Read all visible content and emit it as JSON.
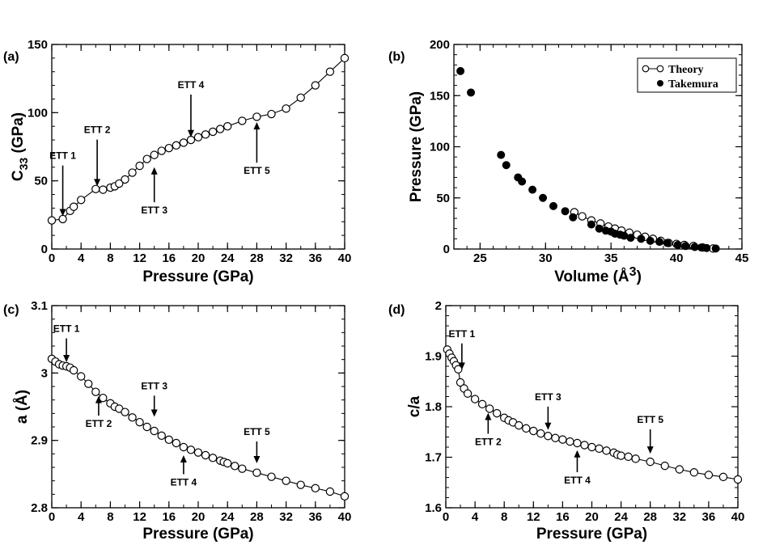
{
  "chart_data": [
    {
      "type": "line",
      "panel": "(a)",
      "xlabel": "Pressure (GPa)",
      "ylabel": "C",
      "ylabel_sub": "33",
      "ylabel_suffix": " (GPa)",
      "xlim": [
        0,
        40
      ],
      "ylim": [
        0,
        150
      ],
      "xticks": [
        "0",
        "4",
        "8",
        "12",
        "16",
        "20",
        "24",
        "28",
        "32",
        "36",
        "40"
      ],
      "xtick_values": [
        0,
        4,
        8,
        12,
        16,
        20,
        24,
        28,
        32,
        36,
        40
      ],
      "yticks": [
        "0",
        "50",
        "100",
        "150"
      ],
      "ytick_values": [
        0,
        50,
        100,
        150
      ],
      "series": [
        {
          "name": "C33",
          "style": "line-open-circles",
          "x": [
            0,
            1.5,
            2.5,
            3,
            4,
            6,
            7,
            8,
            8.6,
            9.2,
            10,
            11,
            12,
            13,
            14,
            15,
            16,
            17,
            18,
            19,
            20,
            21,
            22,
            23,
            24,
            26,
            28,
            30,
            32,
            34,
            36,
            38,
            40
          ],
          "y": [
            21,
            22,
            28,
            31,
            36,
            44,
            43.5,
            45,
            46,
            48,
            51,
            56,
            61,
            66,
            69,
            72,
            74,
            76,
            78,
            80,
            82,
            84,
            86,
            88,
            90,
            94,
            97,
            99,
            103,
            111,
            120,
            130,
            140
          ]
        }
      ],
      "annotations": [
        {
          "text": "ETT 1",
          "x": 1.5,
          "y_tip": 24,
          "y_text": 66,
          "direction": "down"
        },
        {
          "text": "ETT 2",
          "x": 6.2,
          "y_tip": 46,
          "y_text": 85,
          "direction": "down"
        },
        {
          "text": "ETT 3",
          "x": 14,
          "y_tip": 60,
          "y_text": 26,
          "direction": "up"
        },
        {
          "text": "ETT 4",
          "x": 19,
          "y_tip": 82,
          "y_text": 118,
          "direction": "down"
        },
        {
          "text": "ETT 5",
          "x": 28,
          "y_tip": 93,
          "y_text": 55,
          "direction": "up"
        }
      ]
    },
    {
      "type": "scatter",
      "panel": "(b)",
      "xlabel": "Volume (Å",
      "xlabel_sup": "3",
      "xlabel_suffix": ")",
      "ylabel": "Pressure (GPa)",
      "xlim": [
        23,
        45
      ],
      "ylim": [
        0,
        200
      ],
      "xticks": [
        "25",
        "30",
        "35",
        "40",
        "45"
      ],
      "xtick_values": [
        25,
        30,
        35,
        40,
        45
      ],
      "yticks": [
        "0",
        "50",
        "100",
        "150",
        "200"
      ],
      "ytick_values": [
        0,
        50,
        100,
        150,
        200
      ],
      "legend": [
        "Theory",
        "Takemura"
      ],
      "legend_position": "top-right",
      "series": [
        {
          "name": "Theory",
          "style": "line-open-circles",
          "x": [
            32.2,
            32.8,
            33.5,
            34.2,
            34.8,
            35.3,
            35.8,
            36.4,
            37.0,
            37.6,
            38.2,
            38.8,
            39.4,
            40.0,
            40.6,
            41.3,
            42.0,
            42.8
          ],
          "y": [
            36,
            32,
            28,
            25,
            22,
            20,
            18,
            16,
            14,
            12,
            10,
            8,
            6,
            5,
            4,
            3,
            1.5,
            0.5
          ]
        },
        {
          "name": "Takemura",
          "style": "filled-circles",
          "x": [
            23.5,
            24.3,
            26.6,
            27.0,
            27.9,
            28.2,
            29.0,
            29.8,
            30.6,
            31.5,
            32.1,
            33.5,
            34.1,
            34.6,
            35.0,
            35.3,
            35.7,
            36.0,
            36.5,
            37.3,
            38.0,
            38.7,
            39.3,
            40.1,
            40.7,
            41.4,
            41.9,
            42.3,
            43.0
          ],
          "y": [
            174,
            153,
            92,
            82,
            70,
            66,
            58,
            50,
            42,
            37,
            31,
            24,
            20,
            18,
            17,
            15,
            14,
            13,
            11,
            10,
            8,
            7,
            6,
            4,
            3,
            2,
            1.5,
            1,
            0.5
          ]
        }
      ]
    },
    {
      "type": "line",
      "panel": "(c)",
      "xlabel": "Pressure (GPa)",
      "ylabel": "a (Å)",
      "xlim": [
        0,
        40
      ],
      "ylim": [
        2.8,
        3.1
      ],
      "xticks": [
        "0",
        "4",
        "8",
        "12",
        "16",
        "20",
        "24",
        "28",
        "32",
        "36",
        "40"
      ],
      "xtick_values": [
        0,
        4,
        8,
        12,
        16,
        20,
        24,
        28,
        32,
        36,
        40
      ],
      "yticks": [
        "2.8",
        "2.9",
        "3",
        "3.1"
      ],
      "ytick_values": [
        2.8,
        2.9,
        3.0,
        3.1
      ],
      "series": [
        {
          "name": "a",
          "style": "line-open-circles",
          "x": [
            0,
            0.5,
            1.0,
            1.5,
            2.0,
            2.5,
            3.0,
            4.0,
            5.0,
            6.0,
            7.0,
            8.0,
            8.6,
            9.2,
            10,
            11,
            12,
            13,
            14,
            15,
            16,
            17,
            18,
            19,
            20,
            21,
            22,
            23,
            23.5,
            24,
            25,
            26,
            28,
            30,
            32,
            34,
            36,
            38,
            40
          ],
          "y": [
            3.021,
            3.017,
            3.013,
            3.011,
            3.01,
            3.008,
            3.004,
            2.995,
            2.984,
            2.972,
            2.963,
            2.955,
            2.95,
            2.947,
            2.942,
            2.934,
            2.927,
            2.92,
            2.914,
            2.907,
            2.901,
            2.896,
            2.89,
            2.886,
            2.882,
            2.878,
            2.874,
            2.87,
            2.868,
            2.866,
            2.862,
            2.858,
            2.852,
            2.846,
            2.84,
            2.834,
            2.829,
            2.824,
            2.817
          ]
        }
      ],
      "annotations": [
        {
          "text": "ETT 1",
          "x": 2,
          "y_tip": 3.016,
          "y_text": 3.061,
          "direction": "down"
        },
        {
          "text": "ETT 2",
          "x": 6.4,
          "y_tip": 2.966,
          "y_text": 2.92,
          "direction": "up"
        },
        {
          "text": "ETT 3",
          "x": 14,
          "y_tip": 2.935,
          "y_text": 2.976,
          "direction": "down"
        },
        {
          "text": "ETT 4",
          "x": 18,
          "y_tip": 2.878,
          "y_text": 2.833,
          "direction": "up"
        },
        {
          "text": "ETT 5",
          "x": 28,
          "y_tip": 2.866,
          "y_text": 2.908,
          "direction": "down"
        }
      ]
    },
    {
      "type": "line",
      "panel": "(d)",
      "xlabel": "Pressure (GPa)",
      "ylabel": "c/a",
      "xlim": [
        0,
        40
      ],
      "ylim": [
        1.6,
        2.0
      ],
      "xticks": [
        "0",
        "4",
        "8",
        "12",
        "16",
        "20",
        "24",
        "28",
        "32",
        "36",
        "40"
      ],
      "xtick_values": [
        0,
        4,
        8,
        12,
        16,
        20,
        24,
        28,
        32,
        36,
        40
      ],
      "yticks": [
        "1.6",
        "1.7",
        "1.8",
        "1.9",
        "2"
      ],
      "ytick_values": [
        1.6,
        1.7,
        1.8,
        1.9,
        2.0
      ],
      "series": [
        {
          "name": "c/a",
          "style": "line-open-circles",
          "x": [
            0.2,
            0.5,
            0.8,
            1.1,
            1.4,
            1.7,
            2.0,
            2.5,
            3.0,
            4.0,
            5.0,
            6.0,
            7.0,
            8.0,
            8.6,
            9.2,
            10,
            11,
            12,
            13,
            14,
            15,
            16,
            17,
            18,
            19,
            20,
            21,
            22,
            23,
            23.5,
            24,
            25,
            26,
            28,
            30,
            32,
            34,
            36,
            38,
            40
          ],
          "y": [
            1.913,
            1.905,
            1.897,
            1.89,
            1.882,
            1.874,
            1.848,
            1.836,
            1.826,
            1.815,
            1.805,
            1.796,
            1.787,
            1.778,
            1.773,
            1.769,
            1.763,
            1.757,
            1.752,
            1.747,
            1.742,
            1.738,
            1.735,
            1.731,
            1.728,
            1.724,
            1.72,
            1.717,
            1.713,
            1.709,
            1.705,
            1.703,
            1.701,
            1.697,
            1.691,
            1.683,
            1.676,
            1.67,
            1.665,
            1.661,
            1.656
          ]
        }
      ],
      "annotations": [
        {
          "text": "ETT 1",
          "x": 2.2,
          "y_tip": 1.873,
          "y_text": 1.938,
          "direction": "down"
        },
        {
          "text": "ETT 2",
          "x": 5.8,
          "y_tip": 1.788,
          "y_text": 1.724,
          "direction": "up"
        },
        {
          "text": "ETT 3",
          "x": 14,
          "y_tip": 1.754,
          "y_text": 1.813,
          "direction": "down"
        },
        {
          "text": "ETT 4",
          "x": 18,
          "y_tip": 1.714,
          "y_text": 1.648,
          "direction": "up"
        },
        {
          "text": "ETT 5",
          "x": 28,
          "y_tip": 1.707,
          "y_text": 1.768,
          "direction": "down"
        }
      ]
    }
  ]
}
